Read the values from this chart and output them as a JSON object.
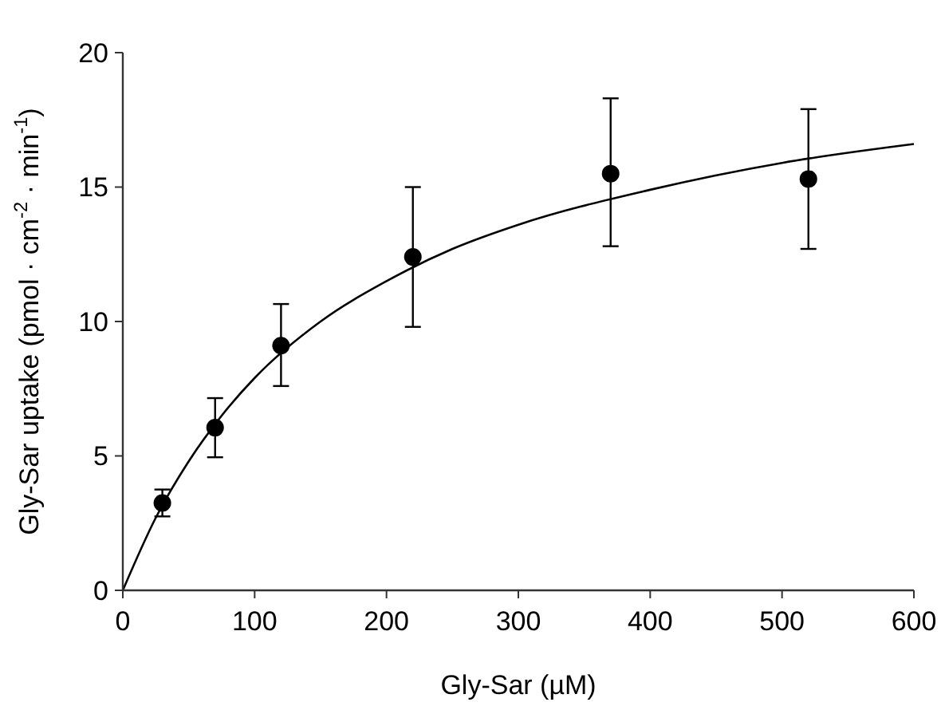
{
  "chart_data": {
    "type": "scatter",
    "xlabel": "Gly-Sar  (µM)",
    "ylabel": "Gly-Sar uptake (pmol · cm$^{-2}$ · min$^{-1}$)",
    "xlim": [
      0,
      600
    ],
    "xticks": [
      0,
      100,
      200,
      300,
      400,
      500,
      600
    ],
    "ylim": [
      0,
      20
    ],
    "yticks": [
      0,
      5,
      10,
      15,
      20
    ],
    "marker": "circle",
    "series": [
      {
        "color": "#000000",
        "x": [
          30,
          70,
          120,
          220,
          370,
          520
        ],
        "values": [
          3.25,
          6.05,
          9.1,
          12.4,
          15.5,
          15.3
        ],
        "errors": [
          [
            2.75,
            3.75
          ],
          [
            4.95,
            7.15
          ],
          [
            7.6,
            10.65
          ],
          [
            9.8,
            15.0
          ],
          [
            12.8,
            18.3
          ],
          [
            12.7,
            17.9
          ]
        ]
      },
      {
        "type": "line",
        "color": "#000000",
        "marker": "none",
        "x": [
          0,
          25,
          50,
          75,
          100,
          150,
          200,
          250,
          300,
          400,
          500,
          600
        ],
        "values": [
          0,
          2.7,
          4.8,
          6.5,
          7.9,
          10.0,
          11.5,
          12.7,
          13.6,
          14.9,
          15.9,
          16.6
        ]
      }
    ]
  }
}
